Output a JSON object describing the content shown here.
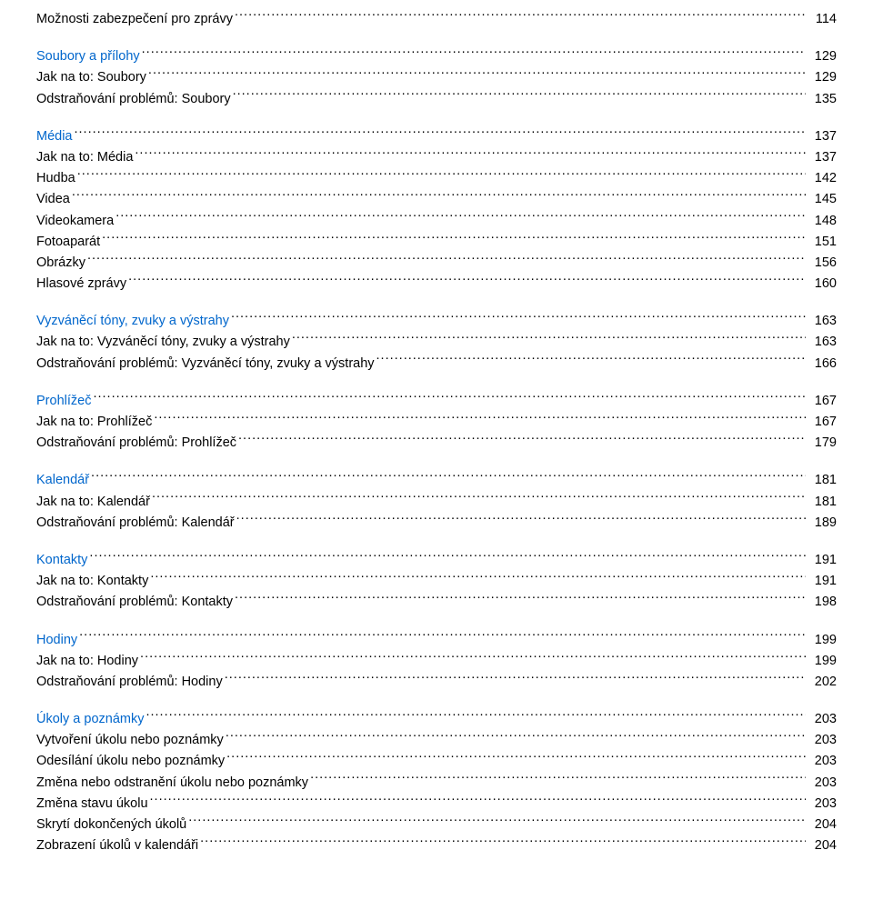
{
  "colors": {
    "section_title": "#0066cc",
    "entry": "#000000",
    "background": "#ffffff"
  },
  "typography": {
    "font_family": "Arial, Helvetica, sans-serif",
    "font_size_pt": 11,
    "line_height": 1.6
  },
  "toc": [
    {
      "entries": [
        {
          "label": "Možnosti zabezpečení pro zprávy",
          "page": "114"
        }
      ]
    },
    {
      "title": {
        "label": "Soubory a přílohy",
        "page": "129"
      },
      "entries": [
        {
          "label": "Jak na to: Soubory",
          "page": "129"
        },
        {
          "label": "Odstraňování problémů: Soubory",
          "page": "135"
        }
      ]
    },
    {
      "title": {
        "label": "Média",
        "page": "137"
      },
      "entries": [
        {
          "label": "Jak na to: Média",
          "page": "137"
        },
        {
          "label": "Hudba",
          "page": "142"
        },
        {
          "label": "Videa",
          "page": "145"
        },
        {
          "label": "Videokamera",
          "page": "148"
        },
        {
          "label": "Fotoaparát",
          "page": "151"
        },
        {
          "label": "Obrázky",
          "page": "156"
        },
        {
          "label": "Hlasové zprávy",
          "page": "160"
        }
      ]
    },
    {
      "title": {
        "label": "Vyzváněcí tóny, zvuky a výstrahy",
        "page": "163"
      },
      "entries": [
        {
          "label": "Jak na to: Vyzváněcí tóny, zvuky a výstrahy",
          "page": "163"
        },
        {
          "label": "Odstraňování problémů: Vyzváněcí tóny, zvuky a výstrahy",
          "page": "166"
        }
      ]
    },
    {
      "title": {
        "label": "Prohlížeč",
        "page": "167"
      },
      "entries": [
        {
          "label": "Jak na to: Prohlížeč",
          "page": "167"
        },
        {
          "label": "Odstraňování problémů: Prohlížeč",
          "page": "179"
        }
      ]
    },
    {
      "title": {
        "label": "Kalendář",
        "page": "181"
      },
      "entries": [
        {
          "label": "Jak na to: Kalendář",
          "page": "181"
        },
        {
          "label": "Odstraňování problémů: Kalendář",
          "page": "189"
        }
      ]
    },
    {
      "title": {
        "label": "Kontakty",
        "page": "191"
      },
      "entries": [
        {
          "label": "Jak na to: Kontakty",
          "page": "191"
        },
        {
          "label": "Odstraňování problémů: Kontakty",
          "page": "198"
        }
      ]
    },
    {
      "title": {
        "label": "Hodiny",
        "page": "199"
      },
      "entries": [
        {
          "label": "Jak na to: Hodiny",
          "page": "199"
        },
        {
          "label": "Odstraňování problémů: Hodiny",
          "page": "202"
        }
      ]
    },
    {
      "title": {
        "label": "Úkoly a poznámky",
        "page": "203"
      },
      "entries": [
        {
          "label": "Vytvoření úkolu nebo poznámky",
          "page": "203"
        },
        {
          "label": "Odesílání úkolu nebo poznámky",
          "page": "203"
        },
        {
          "label": "Změna nebo odstranění úkolu nebo poznámky",
          "page": "203"
        },
        {
          "label": "Změna stavu úkolu",
          "page": "203"
        },
        {
          "label": "Skrytí dokončených úkolů",
          "page": "204"
        },
        {
          "label": "Zobrazení úkolů v kalendáři",
          "page": "204"
        }
      ]
    }
  ]
}
